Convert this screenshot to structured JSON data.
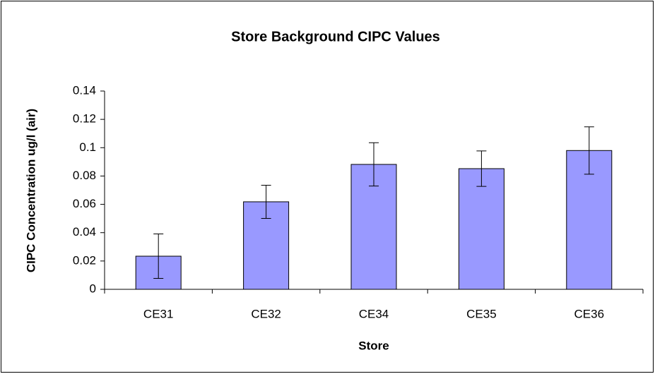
{
  "chart_data": {
    "type": "bar",
    "title": "Store Background  CIPC Values",
    "x_label": "Store",
    "y_label": "CIPC Concentration ug/l (air)",
    "categories": [
      "CE31",
      "CE32",
      "CE34",
      "CE35",
      "CE36"
    ],
    "values": [
      0.0234,
      0.0618,
      0.0882,
      0.0852,
      0.098
    ],
    "errors": [
      0.0157,
      0.0117,
      0.0153,
      0.0125,
      0.0167
    ],
    "color": "#9999ff",
    "ylim": [
      0,
      0.14
    ],
    "yticks": [
      0,
      0.02,
      0.04,
      0.06,
      0.08,
      0.1,
      0.12,
      0.14
    ],
    "grid": false
  }
}
